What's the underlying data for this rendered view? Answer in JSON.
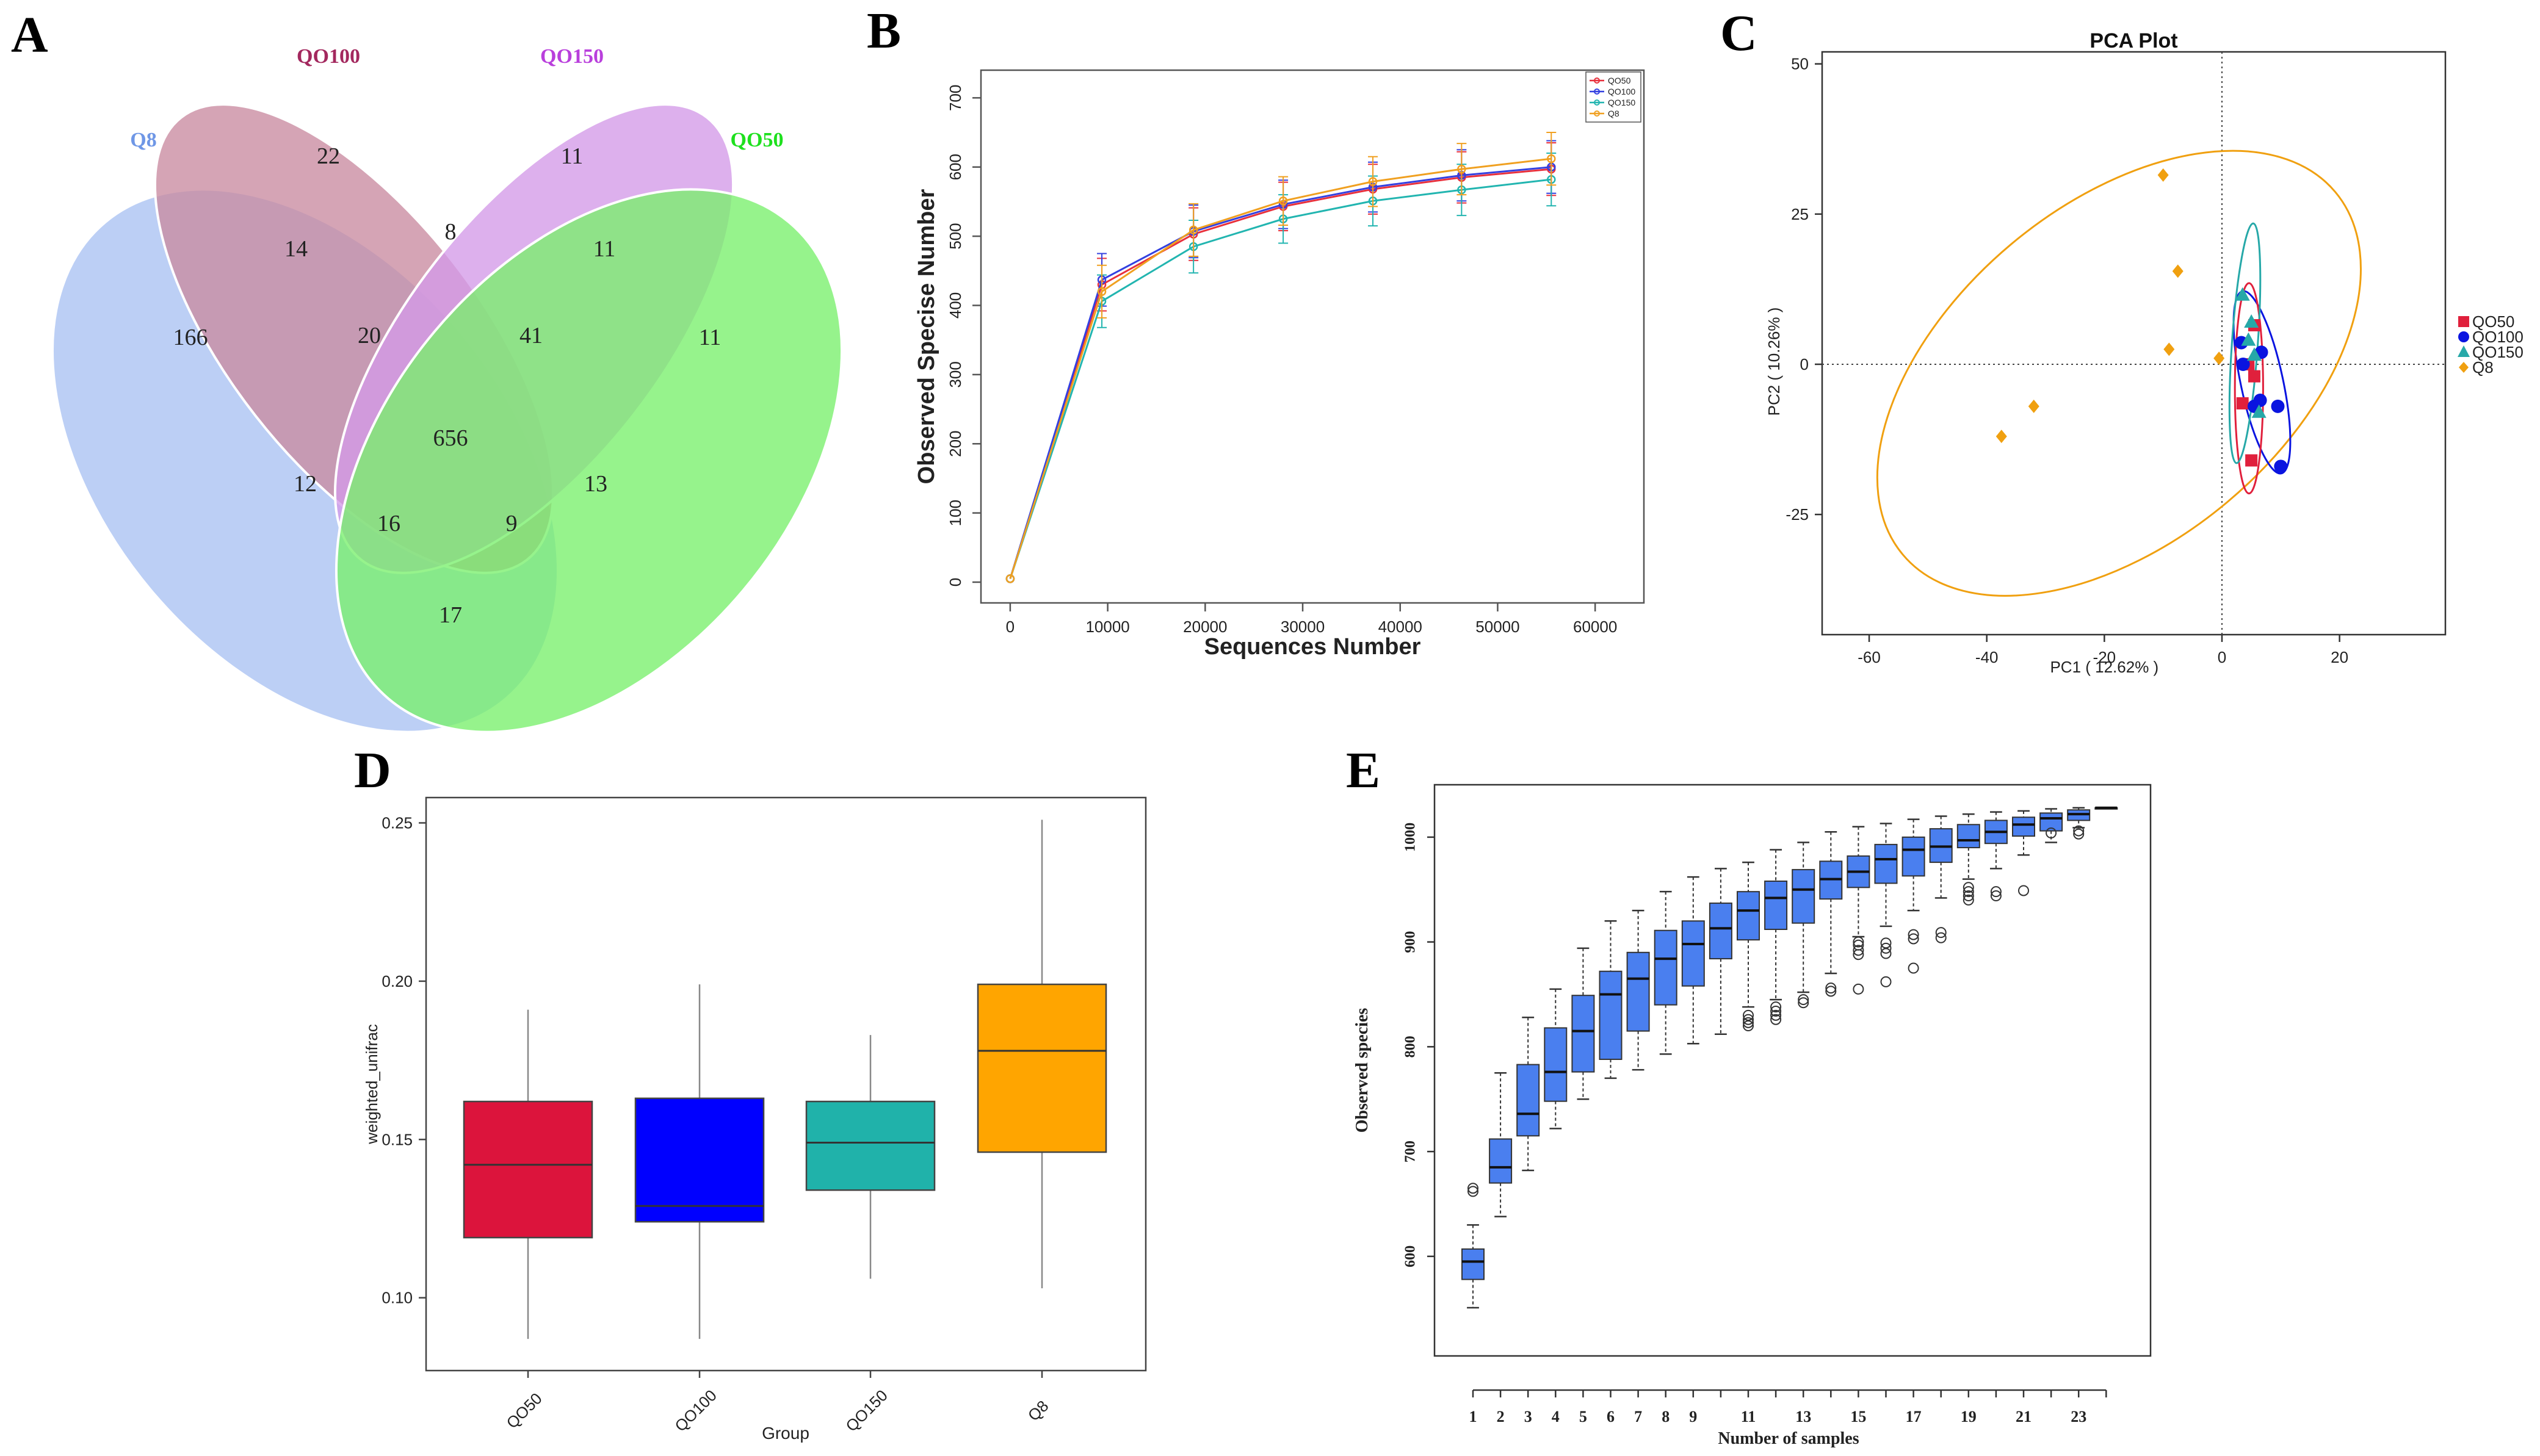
{
  "chart_data": [
    {
      "panel": "A",
      "type": "venn",
      "sets": [
        {
          "name": "Q8",
          "color": "#6f97e6",
          "fill": "#a9c2f2"
        },
        {
          "name": "QO100",
          "color": "#a3285e",
          "fill": "#c98aa0"
        },
        {
          "name": "QO150",
          "color": "#b93fdc",
          "fill": "#d39ae8"
        },
        {
          "name": "QO50",
          "color": "#1ee01e",
          "fill": "#78f06c"
        }
      ],
      "regions": [
        {
          "label": "Q8 only",
          "value": "166"
        },
        {
          "label": "QO100 only",
          "value": "22"
        },
        {
          "label": "QO150 only",
          "value": "11"
        },
        {
          "label": "QO50 only",
          "value": "11"
        },
        {
          "label": "Q8∩QO100",
          "value": "14"
        },
        {
          "label": "QO100∩QO150",
          "value": "8"
        },
        {
          "label": "QO150∩QO50",
          "value": "11"
        },
        {
          "label": "Q8∩QO100∩QO150",
          "value": "20"
        },
        {
          "label": "QO100∩QO150∩QO50",
          "value": "41"
        },
        {
          "label": "all four",
          "value": "656"
        },
        {
          "label": "Q8∩QO150",
          "value": "12"
        },
        {
          "label": "QO100∩QO50",
          "value": "13"
        },
        {
          "label": "Q8∩QO150∩QO50",
          "value": "16"
        },
        {
          "label": "Q8∩QO100∩QO50",
          "value": "9"
        },
        {
          "label": "Q8∩QO50",
          "value": "17"
        }
      ]
    },
    {
      "panel": "B",
      "type": "line",
      "xlabel": "Sequences Number",
      "ylabel": "Observed Specise Number",
      "xlim": [
        -3000,
        65000
      ],
      "ylim": [
        -30,
        740
      ],
      "xticks": [
        0,
        10000,
        20000,
        30000,
        40000,
        50000,
        60000
      ],
      "yticks": [
        0,
        100,
        200,
        300,
        400,
        500,
        600,
        700
      ],
      "x": [
        0,
        9400,
        18800,
        28000,
        37200,
        46300,
        55500
      ],
      "series": [
        {
          "name": "QO50",
          "color": "#e8303c",
          "values": [
            5,
            430,
            503,
            543,
            568,
            585,
            597
          ]
        },
        {
          "name": "QO100",
          "color": "#3340e0",
          "values": [
            5,
            437,
            507,
            546,
            571,
            588,
            600
          ]
        },
        {
          "name": "QO150",
          "color": "#22b5b0",
          "values": [
            5,
            406,
            485,
            525,
            551,
            567,
            582
          ]
        },
        {
          "name": "Q8",
          "color": "#f0a020",
          "values": [
            5,
            420,
            509,
            551,
            579,
            597,
            612
          ]
        }
      ]
    },
    {
      "panel": "C",
      "type": "scatter",
      "title": "PCA Plot",
      "xlabel": "PC1 ( 12.62% )",
      "ylabel": "PC2 ( 10.26% )",
      "xlim": [
        -68,
        38
      ],
      "ylim": [
        -45,
        52
      ],
      "xticks": [
        -60,
        -40,
        -20,
        0,
        20
      ],
      "yticks": [
        -25,
        0,
        25,
        50
      ],
      "series": [
        {
          "name": "QO50",
          "color": "#e0203c",
          "marker": "square",
          "points": [
            [
              3.5,
              -6.5
            ],
            [
              4.5,
              0
            ],
            [
              5,
              -16
            ],
            [
              5.5,
              6.5
            ],
            [
              5.5,
              -2
            ]
          ]
        },
        {
          "name": "QO100",
          "color": "#0a14e0",
          "marker": "circle",
          "points": [
            [
              3.3,
              3.6
            ],
            [
              3.6,
              0
            ],
            [
              5.5,
              -7
            ],
            [
              6.5,
              -6
            ],
            [
              9.5,
              -7
            ],
            [
              10,
              -17
            ],
            [
              6.7,
              2
            ]
          ]
        },
        {
          "name": "QO150",
          "color": "#26a8a8",
          "marker": "triangle",
          "points": [
            [
              3.5,
              11.5
            ],
            [
              4.5,
              4
            ],
            [
              5,
              7
            ],
            [
              5.5,
              1.5
            ],
            [
              6.3,
              -8
            ]
          ]
        },
        {
          "name": "Q8",
          "color": "#f0a010",
          "marker": "diamond",
          "points": [
            [
              -10,
              31.5
            ],
            [
              -7.5,
              15.5
            ],
            [
              -9,
              2.5
            ],
            [
              -32,
              -7
            ],
            [
              -37.5,
              -12
            ],
            [
              -0.5,
              1
            ]
          ]
        }
      ]
    },
    {
      "panel": "D",
      "type": "box",
      "xlabel": "Group",
      "ylabel": "weighted_unifrac",
      "ylim": [
        0.077,
        0.258
      ],
      "yticks": [
        "0.10",
        "0.15",
        "0.20",
        "0.25"
      ],
      "categories": [
        "QO50",
        "QO100",
        "QO150",
        "Q8"
      ],
      "boxes": [
        {
          "name": "QO50",
          "color": "#dc143c",
          "whislo": 0.087,
          "q1": 0.119,
          "med": 0.142,
          "q3": 0.162,
          "whishi": 0.191
        },
        {
          "name": "QO100",
          "color": "#0000ff",
          "whislo": 0.087,
          "q1": 0.124,
          "med": 0.129,
          "q3": 0.163,
          "whishi": 0.199
        },
        {
          "name": "QO150",
          "color": "#20b2aa",
          "whislo": 0.106,
          "q1": 0.134,
          "med": 0.149,
          "q3": 0.162,
          "whishi": 0.183
        },
        {
          "name": "Q8",
          "color": "#ffa500",
          "whislo": 0.103,
          "q1": 0.146,
          "med": 0.178,
          "q3": 0.199,
          "whishi": 0.251
        }
      ]
    },
    {
      "panel": "E",
      "type": "box",
      "xlabel": "Number of samples",
      "ylabel": "Observed species",
      "ylim": [
        505,
        1050
      ],
      "yticks": [
        600,
        700,
        800,
        900,
        1000
      ],
      "xticks": [
        1,
        2,
        3,
        4,
        5,
        6,
        7,
        8,
        9,
        11,
        13,
        15,
        17,
        19,
        21,
        23
      ],
      "color": "#4a7fef",
      "boxes": [
        {
          "n": 1,
          "whislo": 551,
          "q1": 578,
          "med": 595,
          "q3": 607,
          "whishi": 630,
          "outliers": [
            662,
            665
          ]
        },
        {
          "n": 2,
          "whislo": 638,
          "q1": 670,
          "med": 685,
          "q3": 712,
          "whishi": 775
        },
        {
          "n": 3,
          "whislo": 682,
          "q1": 715,
          "med": 736,
          "q3": 783,
          "whishi": 828
        },
        {
          "n": 4,
          "whislo": 722,
          "q1": 748,
          "med": 776,
          "q3": 818,
          "whishi": 855
        },
        {
          "n": 5,
          "whislo": 750,
          "q1": 776,
          "med": 815,
          "q3": 849,
          "whishi": 894
        },
        {
          "n": 6,
          "whislo": 770,
          "q1": 788,
          "med": 850,
          "q3": 872,
          "whishi": 920
        },
        {
          "n": 7,
          "whislo": 778,
          "q1": 815,
          "med": 865,
          "q3": 890,
          "whishi": 930
        },
        {
          "n": 8,
          "whislo": 793,
          "q1": 840,
          "med": 884,
          "q3": 911,
          "whishi": 948
        },
        {
          "n": 9,
          "whislo": 803,
          "q1": 858,
          "med": 898,
          "q3": 920,
          "whishi": 962
        },
        {
          "n": 10,
          "whislo": 812,
          "q1": 884,
          "med": 913,
          "q3": 937,
          "whishi": 970
        },
        {
          "n": 11,
          "whislo": 838,
          "q1": 902,
          "med": 930,
          "q3": 948,
          "whishi": 976,
          "outliers": [
            820,
            823,
            826,
            830
          ]
        },
        {
          "n": 12,
          "whislo": 845,
          "q1": 912,
          "med": 942,
          "q3": 958,
          "whishi": 988,
          "outliers": [
            826,
            830,
            834,
            838
          ]
        },
        {
          "n": 13,
          "whislo": 852,
          "q1": 918,
          "med": 950,
          "q3": 969,
          "whishi": 995,
          "outliers": [
            842,
            845
          ]
        },
        {
          "n": 14,
          "whislo": 870,
          "q1": 941,
          "med": 960,
          "q3": 977,
          "whishi": 1005,
          "outliers": [
            853,
            856
          ]
        },
        {
          "n": 15,
          "whislo": 905,
          "q1": 952,
          "med": 967,
          "q3": 982,
          "whishi": 1010,
          "outliers": [
            855,
            888,
            892,
            897,
            900
          ]
        },
        {
          "n": 16,
          "whislo": 915,
          "q1": 956,
          "med": 979,
          "q3": 993,
          "whishi": 1013,
          "outliers": [
            862,
            889,
            894,
            899
          ]
        },
        {
          "n": 17,
          "whislo": 930,
          "q1": 963,
          "med": 988,
          "q3": 1000,
          "whishi": 1017,
          "outliers": [
            875,
            903,
            907
          ]
        },
        {
          "n": 18,
          "whislo": 942,
          "q1": 976,
          "med": 991,
          "q3": 1008,
          "whishi": 1020,
          "outliers": [
            904,
            909
          ]
        },
        {
          "n": 19,
          "whislo": 960,
          "q1": 990,
          "med": 997,
          "q3": 1012,
          "whishi": 1022,
          "outliers": [
            940,
            944,
            948,
            952
          ]
        },
        {
          "n": 20,
          "whislo": 970,
          "q1": 994,
          "med": 1005,
          "q3": 1016,
          "whishi": 1024,
          "outliers": [
            944,
            948
          ]
        },
        {
          "n": 21,
          "whislo": 983,
          "q1": 1001,
          "med": 1012,
          "q3": 1019,
          "whishi": 1025,
          "outliers": [
            949
          ]
        },
        {
          "n": 22,
          "whislo": 995,
          "q1": 1006,
          "med": 1018,
          "q3": 1023,
          "whishi": 1027,
          "outliers": [
            1004
          ]
        },
        {
          "n": 23,
          "whislo": 1009,
          "q1": 1016,
          "med": 1022,
          "q3": 1026,
          "whishi": 1028,
          "outliers": [
            1003,
            1006
          ]
        },
        {
          "n": 24,
          "whislo": 1028,
          "q1": 1028,
          "med": 1028,
          "q3": 1028,
          "whishi": 1028
        }
      ]
    }
  ]
}
